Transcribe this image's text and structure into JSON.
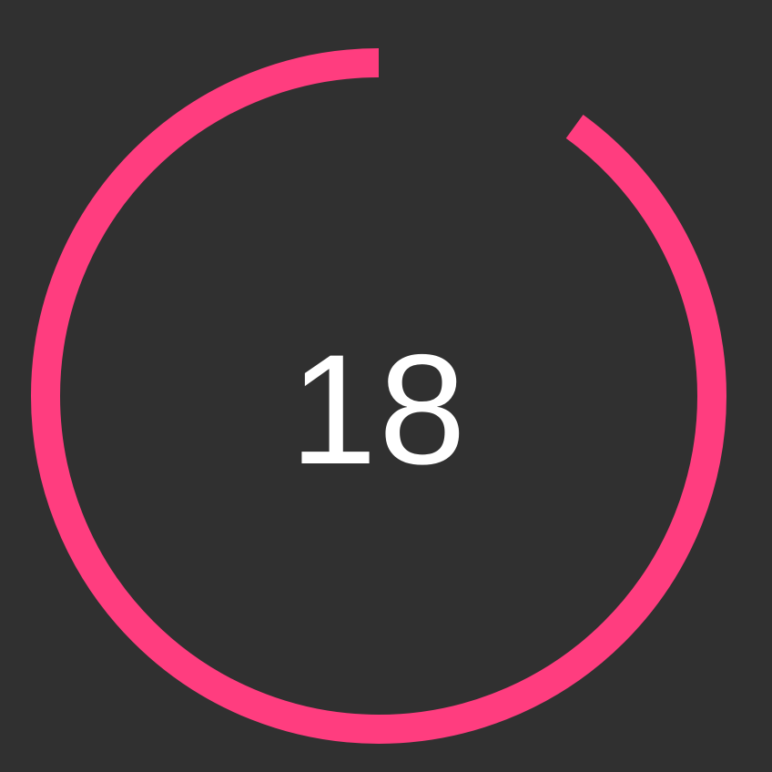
{
  "timer": {
    "value": "18",
    "progress_fraction": 0.9,
    "ring_color": "#ff3d7f",
    "track_color": "#303030",
    "text_color": "#ffffff"
  }
}
